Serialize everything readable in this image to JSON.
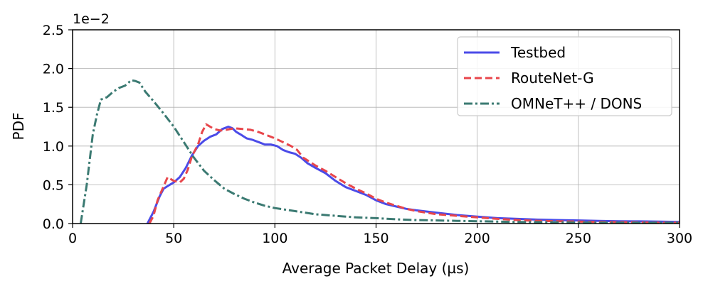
{
  "chart_data": {
    "type": "line",
    "title": "",
    "xlabel": "Average Packet Delay (µs)",
    "ylabel": "PDF",
    "y_scale_label": "1e−2",
    "xlim": [
      0,
      300
    ],
    "ylim": [
      0,
      2.5
    ],
    "xticks": [
      0,
      50,
      100,
      150,
      200,
      250,
      300
    ],
    "xtick_labels": [
      "0",
      "50",
      "100",
      "150",
      "200",
      "250",
      "300"
    ],
    "yticks": [
      0,
      0.5,
      1.0,
      1.5,
      2.0,
      2.5
    ],
    "ytick_labels": [
      "0.0",
      "0.5",
      "1.0",
      "1.5",
      "2.0",
      "2.5"
    ],
    "grid": true,
    "legend_position": "top-right",
    "series": [
      {
        "name": "Testbed",
        "color": "#4b4be8",
        "style": "solid",
        "points": [
          [
            37,
            0
          ],
          [
            40,
            0.15
          ],
          [
            43,
            0.35
          ],
          [
            45,
            0.45
          ],
          [
            48,
            0.5
          ],
          [
            50,
            0.53
          ],
          [
            53,
            0.6
          ],
          [
            56,
            0.72
          ],
          [
            59,
            0.88
          ],
          [
            62,
            1.0
          ],
          [
            65,
            1.07
          ],
          [
            68,
            1.12
          ],
          [
            71,
            1.15
          ],
          [
            74,
            1.22
          ],
          [
            77,
            1.25
          ],
          [
            79,
            1.23
          ],
          [
            81,
            1.18
          ],
          [
            83,
            1.15
          ],
          [
            86,
            1.1
          ],
          [
            89,
            1.08
          ],
          [
            92,
            1.05
          ],
          [
            95,
            1.02
          ],
          [
            98,
            1.02
          ],
          [
            101,
            1.0
          ],
          [
            104,
            0.95
          ],
          [
            107,
            0.92
          ],
          [
            110,
            0.9
          ],
          [
            113,
            0.85
          ],
          [
            116,
            0.78
          ],
          [
            120,
            0.72
          ],
          [
            125,
            0.65
          ],
          [
            130,
            0.55
          ],
          [
            135,
            0.47
          ],
          [
            140,
            0.42
          ],
          [
            145,
            0.37
          ],
          [
            150,
            0.3
          ],
          [
            155,
            0.25
          ],
          [
            160,
            0.22
          ],
          [
            165,
            0.19
          ],
          [
            170,
            0.17
          ],
          [
            180,
            0.14
          ],
          [
            190,
            0.11
          ],
          [
            200,
            0.09
          ],
          [
            210,
            0.07
          ],
          [
            220,
            0.06
          ],
          [
            230,
            0.05
          ],
          [
            240,
            0.045
          ],
          [
            250,
            0.04
          ],
          [
            260,
            0.035
          ],
          [
            270,
            0.03
          ],
          [
            280,
            0.028
          ],
          [
            290,
            0.025
          ],
          [
            300,
            0.02
          ]
        ]
      },
      {
        "name": "RouteNet-G",
        "color": "#e8464b",
        "style": "dashed",
        "points": [
          [
            38,
            0
          ],
          [
            40,
            0.1
          ],
          [
            42,
            0.3
          ],
          [
            45,
            0.48
          ],
          [
            47,
            0.6
          ],
          [
            50,
            0.55
          ],
          [
            53,
            0.53
          ],
          [
            55,
            0.58
          ],
          [
            57,
            0.7
          ],
          [
            59,
            0.87
          ],
          [
            62,
            1.02
          ],
          [
            64,
            1.18
          ],
          [
            66,
            1.28
          ],
          [
            68,
            1.25
          ],
          [
            70,
            1.22
          ],
          [
            73,
            1.2
          ],
          [
            76,
            1.21
          ],
          [
            80,
            1.23
          ],
          [
            84,
            1.22
          ],
          [
            88,
            1.21
          ],
          [
            92,
            1.18
          ],
          [
            96,
            1.14
          ],
          [
            100,
            1.1
          ],
          [
            104,
            1.05
          ],
          [
            108,
            1.0
          ],
          [
            111,
            0.95
          ],
          [
            114,
            0.85
          ],
          [
            117,
            0.8
          ],
          [
            120,
            0.75
          ],
          [
            125,
            0.68
          ],
          [
            130,
            0.6
          ],
          [
            135,
            0.52
          ],
          [
            140,
            0.45
          ],
          [
            145,
            0.39
          ],
          [
            150,
            0.32
          ],
          [
            155,
            0.27
          ],
          [
            160,
            0.23
          ],
          [
            165,
            0.19
          ],
          [
            170,
            0.16
          ],
          [
            180,
            0.12
          ],
          [
            190,
            0.1
          ],
          [
            200,
            0.08
          ],
          [
            210,
            0.06
          ],
          [
            220,
            0.045
          ],
          [
            230,
            0.035
          ],
          [
            240,
            0.03
          ],
          [
            250,
            0.025
          ],
          [
            260,
            0.02
          ],
          [
            270,
            0.018
          ],
          [
            280,
            0.015
          ],
          [
            290,
            0.012
          ],
          [
            300,
            0.01
          ]
        ]
      },
      {
        "name": "OMNeT++ / DONS",
        "color": "#3b7a72",
        "style": "dashdot",
        "points": [
          [
            4,
            0
          ],
          [
            7,
            0.5
          ],
          [
            10,
            1.15
          ],
          [
            12,
            1.4
          ],
          [
            14,
            1.6
          ],
          [
            17,
            1.63
          ],
          [
            20,
            1.7
          ],
          [
            23,
            1.75
          ],
          [
            26,
            1.78
          ],
          [
            29,
            1.85
          ],
          [
            31,
            1.84
          ],
          [
            33,
            1.82
          ],
          [
            36,
            1.7
          ],
          [
            40,
            1.58
          ],
          [
            45,
            1.42
          ],
          [
            50,
            1.25
          ],
          [
            55,
            1.05
          ],
          [
            60,
            0.85
          ],
          [
            65,
            0.68
          ],
          [
            70,
            0.56
          ],
          [
            75,
            0.45
          ],
          [
            80,
            0.38
          ],
          [
            85,
            0.32
          ],
          [
            90,
            0.27
          ],
          [
            95,
            0.23
          ],
          [
            100,
            0.2
          ],
          [
            110,
            0.16
          ],
          [
            120,
            0.12
          ],
          [
            130,
            0.1
          ],
          [
            140,
            0.08
          ],
          [
            150,
            0.07
          ],
          [
            160,
            0.055
          ],
          [
            170,
            0.045
          ],
          [
            180,
            0.04
          ],
          [
            190,
            0.035
          ],
          [
            200,
            0.03
          ],
          [
            210,
            0.025
          ],
          [
            220,
            0.02
          ],
          [
            230,
            0.018
          ],
          [
            240,
            0.015
          ],
          [
            250,
            0.013
          ],
          [
            260,
            0.012
          ],
          [
            270,
            0.011
          ],
          [
            280,
            0.01
          ],
          [
            290,
            0.01
          ],
          [
            300,
            0.01
          ]
        ]
      }
    ]
  }
}
